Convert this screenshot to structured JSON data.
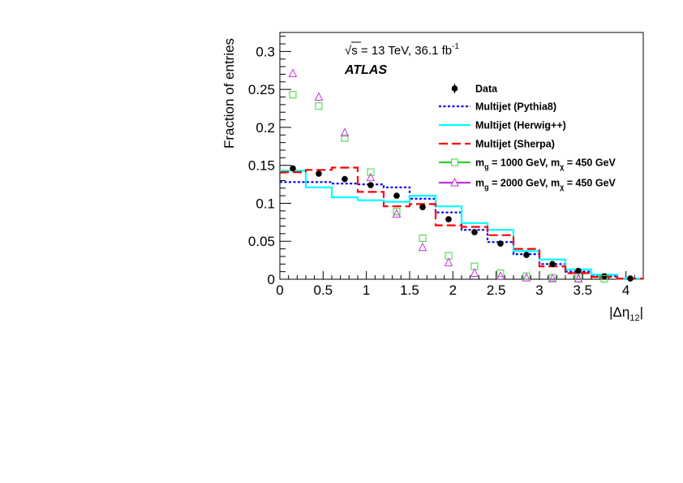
{
  "chart_data": {
    "type": "line",
    "xlabel": "|Δη12|",
    "xlabel_parts": {
      "pre": "|Δη",
      "sub": "12",
      "post": "|"
    },
    "ylabel": "Fraction of entries",
    "xlim": [
      0,
      4.2
    ],
    "ylim": [
      0,
      0.325
    ],
    "x_ticks": [
      "0",
      "0.5",
      "1",
      "1.5",
      "2",
      "2.5",
      "3",
      "3.5",
      "4"
    ],
    "y_ticks": [
      "0",
      "0.05",
      "0.1",
      "0.15",
      "0.2",
      "0.25",
      "0.3"
    ],
    "grid": false,
    "legend_position": "top-right",
    "bin_edges": [
      0,
      0.3,
      0.6,
      0.9,
      1.2,
      1.5,
      1.8,
      2.1,
      2.4,
      2.7,
      3.0,
      3.3,
      3.6,
      3.9,
      4.2
    ],
    "annotations": {
      "energy": {
        "sqrt": "√s",
        "rest": " = 13 TeV, 36.1 fb",
        "sup": "-1"
      },
      "experiment": "ATLAS"
    },
    "series": [
      {
        "name": "Data",
        "style": "points",
        "color": "#000000",
        "x": [
          0.15,
          0.45,
          0.75,
          1.05,
          1.35,
          1.65,
          1.95,
          2.25,
          2.55,
          2.85,
          3.15,
          3.45,
          3.75,
          4.05
        ],
        "values": [
          0.146,
          0.139,
          0.132,
          0.124,
          0.11,
          0.095,
          0.079,
          0.062,
          0.047,
          0.032,
          0.02,
          0.011,
          0.004,
          0.001
        ]
      },
      {
        "name": "Multijet (Pythia8)",
        "style": "step-dotted",
        "color": "#0000ff",
        "values": [
          0.128,
          0.128,
          0.126,
          0.125,
          0.121,
          0.106,
          0.088,
          0.065,
          0.049,
          0.033,
          0.02,
          0.01,
          0.004,
          0.001
        ]
      },
      {
        "name": "Multijet (Herwig++)",
        "style": "step-solid",
        "color": "#00ffff",
        "values": [
          0.143,
          0.121,
          0.108,
          0.104,
          0.102,
          0.11,
          0.096,
          0.074,
          0.065,
          0.037,
          0.026,
          0.013,
          0.006,
          0.001
        ]
      },
      {
        "name": "Multijet (Sherpa)",
        "style": "step-dashed",
        "color": "#ff0000",
        "values": [
          0.141,
          0.144,
          0.147,
          0.115,
          0.096,
          0.099,
          0.071,
          0.069,
          0.058,
          0.04,
          0.017,
          0.008,
          0.003,
          0.001
        ]
      },
      {
        "name": "mg = 1000 GeV, mχ = 450 GeV",
        "style": "open-square",
        "color": "#33dd33",
        "label_parts": {
          "a": "m",
          "a_sub": "g",
          "b": " = 1000 GeV, m",
          "b_sub": "χ",
          "c": " = 450 GeV"
        },
        "x": [
          0.15,
          0.45,
          0.75,
          1.05,
          1.35,
          1.65,
          1.95,
          2.25,
          2.55,
          2.85,
          3.15,
          3.45,
          3.75
        ],
        "values": [
          0.243,
          0.228,
          0.186,
          0.141,
          0.089,
          0.054,
          0.031,
          0.017,
          0.008,
          0.004,
          0.002,
          0.001,
          0.0005
        ]
      },
      {
        "name": "mg = 2000 GeV, mχ = 450 GeV",
        "style": "open-triangle",
        "color": "#cc33dd",
        "label_parts": {
          "a": "m",
          "a_sub": "g",
          "b": " = 2000 GeV, m",
          "b_sub": "χ",
          "c": " = 450 GeV"
        },
        "x": [
          0.15,
          0.45,
          0.75,
          1.05,
          1.35,
          1.65,
          1.95,
          2.25,
          2.55,
          2.85,
          3.15,
          3.45
        ],
        "values": [
          0.271,
          0.24,
          0.193,
          0.134,
          0.086,
          0.042,
          0.022,
          0.008,
          0.004,
          0.002,
          0.001,
          0.0005
        ]
      }
    ]
  }
}
